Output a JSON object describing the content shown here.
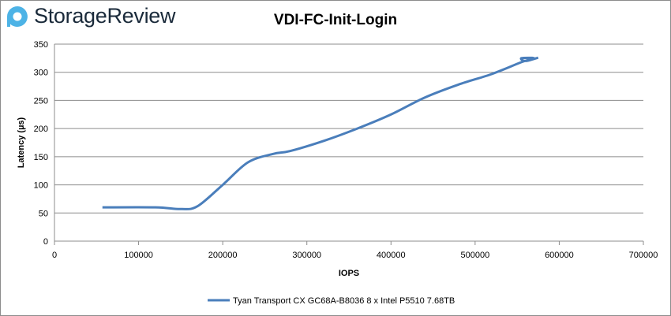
{
  "logo": {
    "text": "StorageReview"
  },
  "chart_data": {
    "type": "line",
    "title": "VDI-FC-Init-Login",
    "xlabel": "IOPS",
    "ylabel": "Latency (µs)",
    "xlim": [
      0,
      700000
    ],
    "ylim": [
      0,
      350
    ],
    "xticks": [
      0,
      100000,
      200000,
      300000,
      400000,
      500000,
      600000,
      700000
    ],
    "yticks": [
      0,
      50,
      100,
      150,
      200,
      250,
      300,
      350
    ],
    "grid": "horizontal",
    "legend": "bottom",
    "series": [
      {
        "name": "Tyan Transport CX GC68A-B8036 8 x Intel P5510 7.68TB",
        "color": "#4a7ebb",
        "x": [
          57000,
          120000,
          150000,
          170000,
          200000,
          230000,
          260000,
          280000,
          320000,
          360000,
          400000,
          440000,
          480000,
          520000,
          555000,
          570000,
          555000,
          560000,
          575000
        ],
        "y": [
          60,
          60,
          57,
          62,
          100,
          140,
          155,
          160,
          178,
          200,
          225,
          255,
          278,
          297,
          318,
          325,
          325,
          320,
          326
        ]
      }
    ]
  }
}
